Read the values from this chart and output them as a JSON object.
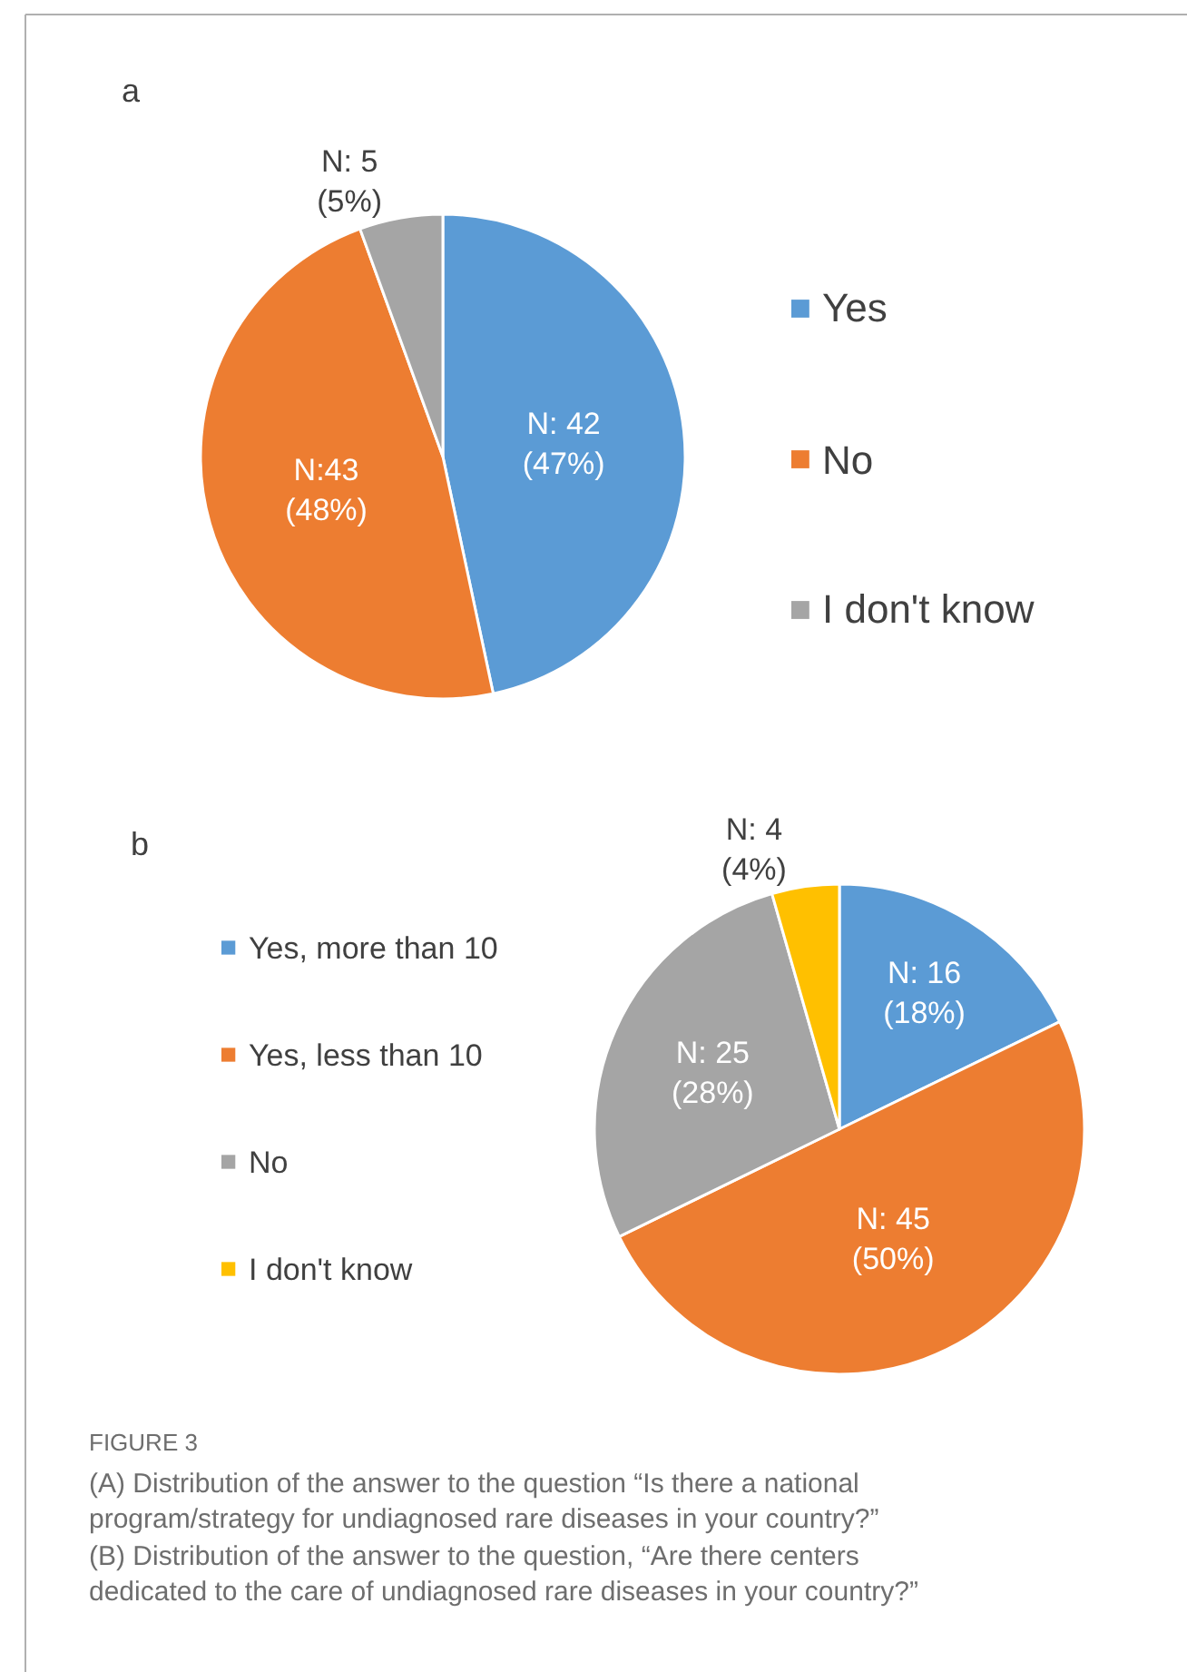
{
  "chart_data": [
    {
      "type": "pie",
      "title": "a",
      "categories": [
        "Yes",
        "No",
        "I don't know"
      ],
      "values": [
        42,
        43,
        5
      ],
      "colors": [
        "#5b9bd5",
        "#ed7d31",
        "#a5a5a5"
      ],
      "value_labels": [
        "N: 42\n(47%)",
        "N:43\n(48%)",
        "N: 5\n(5%)"
      ],
      "legend": "right"
    },
    {
      "type": "pie",
      "title": "b",
      "categories": [
        "Yes, more than 10",
        "Yes, less than 10",
        "No",
        "I don't know"
      ],
      "values": [
        16,
        45,
        25,
        4
      ],
      "colors": [
        "#5b9bd5",
        "#ed7d31",
        "#a5a5a5",
        "#ffc000"
      ],
      "value_labels": [
        "N: 16\n(18%)",
        "N: 45\n(50%)",
        "N: 25\n(28%)",
        "N: 4\n(4%)"
      ],
      "legend": "left",
      "annotations": [
        "FIGURE 3",
        "(A) Distribution of the answer to the question “Is there a national program/strategy for undiagnosed rare diseases in your country?”",
        "(B) Distribution of the answer to the question, “Are there centers dedicated to the care of undiagnosed rare diseases in your country?”"
      ]
    }
  ]
}
